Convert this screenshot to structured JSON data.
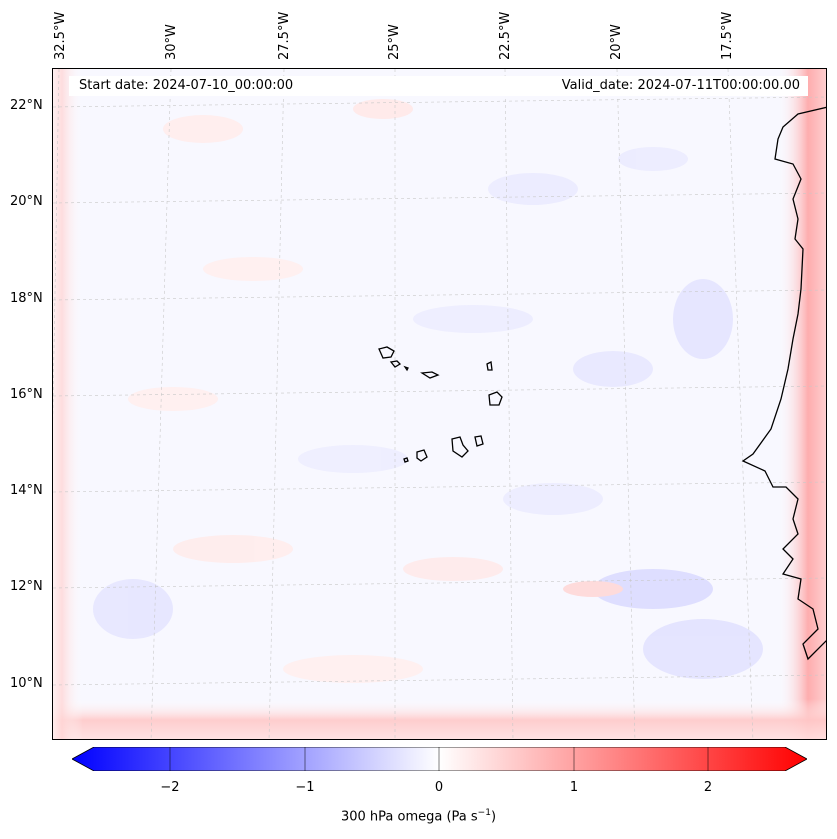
{
  "map": {
    "start_date": "Start date: 2024-07-10_00:00:00",
    "valid_date": "Valid_date: 2024-07-11T00:00:00.00",
    "longitude_labels": [
      "32.5°W",
      "30°W",
      "27.5°W",
      "25°W",
      "22.5°W",
      "20°W",
      "17.5°W"
    ],
    "latitude_labels": [
      "22°N",
      "20°N",
      "18°N",
      "16°N",
      "14°N",
      "12°N",
      "10°N"
    ],
    "field": "300 hPa omega",
    "region": "Cabo Verde / West Africa coast"
  },
  "colorbar": {
    "tick_labels": [
      "−2",
      "−1",
      "0",
      "1",
      "2"
    ],
    "vmin": -2.5,
    "vmax": 2.5,
    "label_main": "300 hPa omega (Pa s",
    "label_sup": "−1",
    "label_end": ")",
    "negative_color": "#0000ff",
    "positive_color": "#ff0000"
  }
}
